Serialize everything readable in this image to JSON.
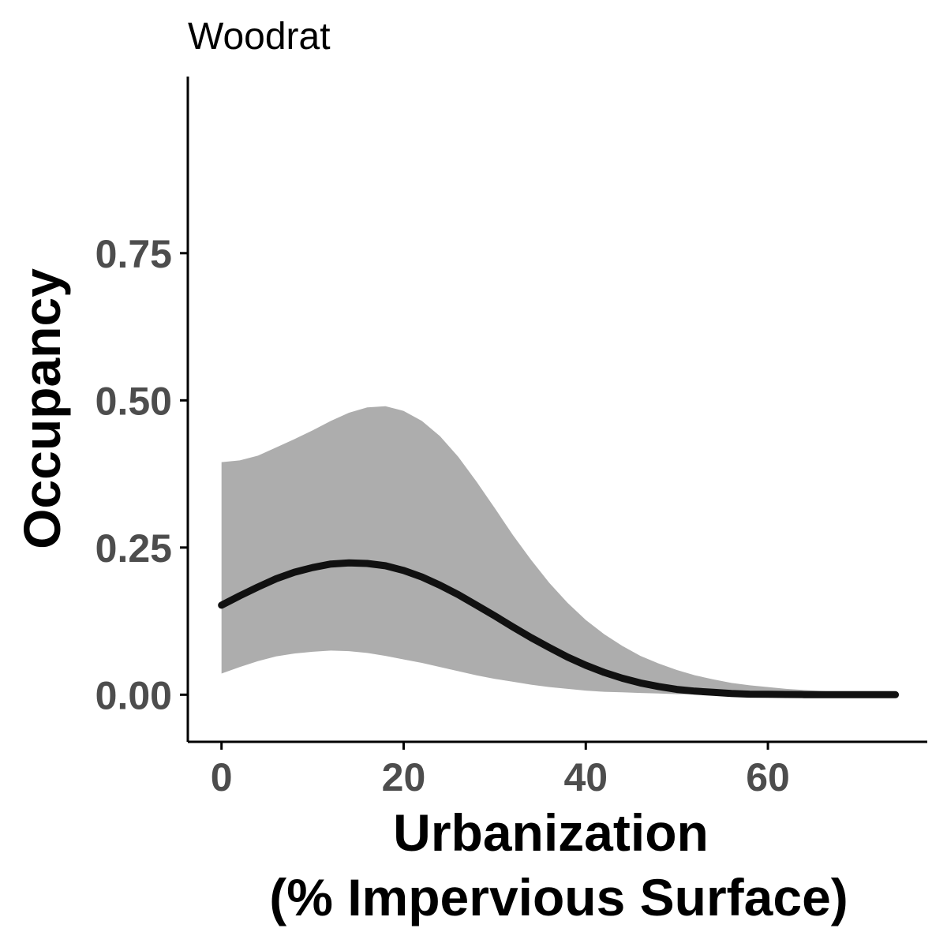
{
  "chart_data": {
    "type": "line",
    "title": "Woodrat",
    "xlabel_lines": [
      "Urbanization",
      "(% Impervious Surface)"
    ],
    "ylabel": "Occupancy",
    "xlim": [
      -3.7,
      77.5
    ],
    "ylim": [
      -0.08,
      1.05
    ],
    "x_ticks": [
      0,
      20,
      40,
      60
    ],
    "x_tick_labels": [
      "0",
      "20",
      "40",
      "60"
    ],
    "y_ticks": [
      0,
      0.25,
      0.5,
      0.75
    ],
    "y_tick_labels": [
      "0.00",
      "0.25",
      "0.50",
      "0.75"
    ],
    "grid": false,
    "legend": "none",
    "colors": {
      "line": "#111111",
      "ribbon": "#adadad",
      "tick_label": "#4d4d4d",
      "axis": "#000000"
    },
    "series": [
      {
        "x": [
          0,
          2,
          4,
          6,
          8,
          10,
          12,
          14,
          16,
          18,
          20,
          22,
          24,
          26,
          28,
          30,
          32,
          34,
          36,
          38,
          40,
          42,
          44,
          46,
          48,
          50,
          52,
          54,
          56,
          58,
          60,
          62,
          64,
          66,
          68,
          70,
          72,
          74
        ],
        "y": [
          0.152,
          0.168,
          0.183,
          0.197,
          0.208,
          0.216,
          0.222,
          0.224,
          0.223,
          0.219,
          0.211,
          0.2,
          0.186,
          0.17,
          0.152,
          0.134,
          0.115,
          0.097,
          0.08,
          0.064,
          0.05,
          0.038,
          0.028,
          0.02,
          0.014,
          0.009,
          0.006,
          0.004,
          0.002,
          0.001,
          0.0007,
          0.0004,
          0.0002,
          0.0001,
          0.0001,
          5e-05,
          3e-05,
          1e-05
        ],
        "lower": [
          0.036,
          0.047,
          0.057,
          0.065,
          0.07,
          0.073,
          0.075,
          0.074,
          0.071,
          0.066,
          0.06,
          0.054,
          0.047,
          0.04,
          0.033,
          0.027,
          0.022,
          0.017,
          0.013,
          0.01,
          0.007,
          0.005,
          0.004,
          0.003,
          0.002,
          0.001,
          0.0008,
          0.0005,
          0.0003,
          0.0002,
          0.0001,
          0.0001,
          5e-05,
          3e-05,
          2e-05,
          1e-05,
          1e-05,
          0.0
        ],
        "upper": [
          0.395,
          0.398,
          0.406,
          0.42,
          0.434,
          0.449,
          0.465,
          0.479,
          0.488,
          0.49,
          0.482,
          0.465,
          0.439,
          0.404,
          0.362,
          0.317,
          0.271,
          0.229,
          0.19,
          0.156,
          0.127,
          0.103,
          0.083,
          0.066,
          0.053,
          0.042,
          0.033,
          0.026,
          0.02,
          0.016,
          0.013,
          0.01,
          0.008,
          0.006,
          0.005,
          0.004,
          0.003,
          0.002
        ]
      }
    ]
  }
}
